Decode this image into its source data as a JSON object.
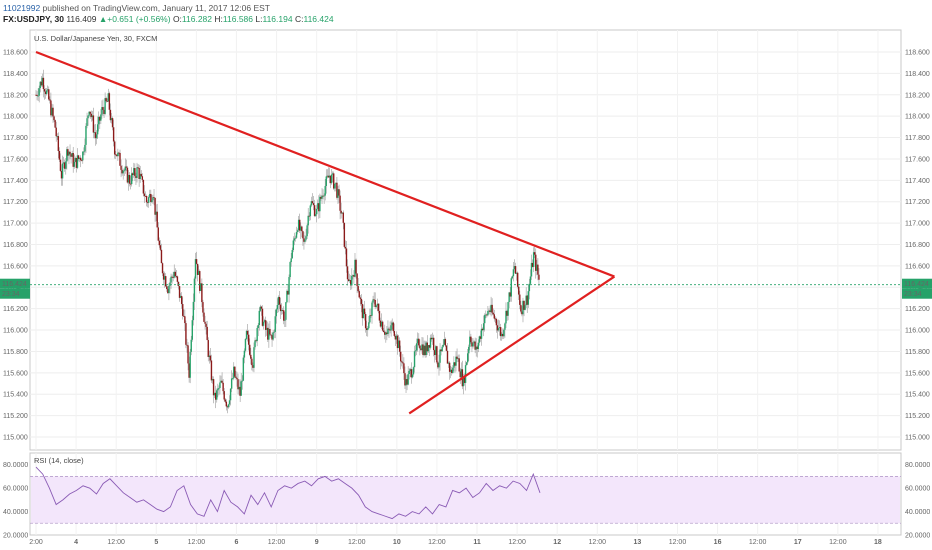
{
  "header": {
    "author": "11021992",
    "published": " published on TradingView.com, January 11, 2017 12:06 EST",
    "symbol": "FX:USDJPY, 30",
    "last": "116.409",
    "change": "+0.651 (+0.56%)",
    "open_label": "O:",
    "open": "116.282",
    "high_label": "H:",
    "high": "116.586",
    "low_label": "L:",
    "low": "116.194",
    "close_label": "C:",
    "close": "116.424",
    "up_arrow": "▲"
  },
  "chart_data": {
    "type": "candlestick",
    "title": "U.S. Dollar/Japanese Yen, 30, FXCM",
    "ylim": [
      114.95,
      118.65
    ],
    "y_ticks": [
      "118.600",
      "118.400",
      "118.200",
      "118.000",
      "117.800",
      "117.600",
      "117.400",
      "117.200",
      "117.000",
      "116.800",
      "116.600",
      "116.400",
      "116.200",
      "116.000",
      "115.800",
      "115.600",
      "115.400",
      "115.200",
      "115.000"
    ],
    "x_ticks": [
      "2:00",
      "4",
      "12:00",
      "5",
      "12:00",
      "6",
      "12:00",
      "9",
      "12:00",
      "10",
      "12:00",
      "11",
      "12:00",
      "12",
      "12:00",
      "13",
      "12:00",
      "16",
      "12:00",
      "17",
      "12:00",
      "18"
    ],
    "last_price": "116.424",
    "countdown": "23:34",
    "price_path": [
      [
        0,
        118.2
      ],
      [
        6,
        118.35
      ],
      [
        12,
        118.15
      ],
      [
        18,
        117.9
      ],
      [
        24,
        117.45
      ],
      [
        30,
        117.7
      ],
      [
        36,
        117.55
      ],
      [
        44,
        117.65
      ],
      [
        50,
        118.1
      ],
      [
        56,
        117.8
      ],
      [
        62,
        118.05
      ],
      [
        68,
        118.15
      ],
      [
        74,
        117.7
      ],
      [
        80,
        117.55
      ],
      [
        88,
        117.4
      ],
      [
        96,
        117.5
      ],
      [
        104,
        117.2
      ],
      [
        110,
        117.3
      ],
      [
        118,
        116.6
      ],
      [
        124,
        116.4
      ],
      [
        130,
        116.55
      ],
      [
        138,
        116.2
      ],
      [
        144,
        115.6
      ],
      [
        150,
        116.7
      ],
      [
        156,
        116.3
      ],
      [
        162,
        115.8
      ],
      [
        168,
        115.35
      ],
      [
        174,
        115.5
      ],
      [
        180,
        115.3
      ],
      [
        186,
        115.6
      ],
      [
        192,
        115.4
      ],
      [
        198,
        115.95
      ],
      [
        204,
        115.7
      ],
      [
        210,
        116.2
      ],
      [
        216,
        116.0
      ],
      [
        222,
        115.9
      ],
      [
        228,
        116.3
      ],
      [
        234,
        116.1
      ],
      [
        240,
        116.7
      ],
      [
        246,
        117.0
      ],
      [
        252,
        116.8
      ],
      [
        258,
        117.2
      ],
      [
        264,
        117.1
      ],
      [
        270,
        117.3
      ],
      [
        276,
        117.45
      ],
      [
        282,
        117.35
      ],
      [
        288,
        117.05
      ],
      [
        294,
        116.4
      ],
      [
        300,
        116.6
      ],
      [
        306,
        116.2
      ],
      [
        312,
        116.0
      ],
      [
        318,
        116.3
      ],
      [
        324,
        116.1
      ],
      [
        330,
        115.95
      ],
      [
        336,
        116.05
      ],
      [
        342,
        115.8
      ],
      [
        348,
        115.5
      ],
      [
        354,
        115.65
      ],
      [
        360,
        115.9
      ],
      [
        366,
        115.8
      ],
      [
        372,
        115.95
      ],
      [
        378,
        115.7
      ],
      [
        384,
        115.85
      ],
      [
        390,
        115.6
      ],
      [
        396,
        115.75
      ],
      [
        402,
        115.5
      ],
      [
        408,
        115.95
      ],
      [
        414,
        115.8
      ],
      [
        420,
        116.05
      ],
      [
        426,
        116.2
      ],
      [
        432,
        116.1
      ],
      [
        438,
        115.95
      ],
      [
        444,
        116.25
      ],
      [
        450,
        116.6
      ],
      [
        456,
        116.2
      ],
      [
        462,
        116.3
      ],
      [
        468,
        116.7
      ],
      [
        474,
        116.42
      ]
    ],
    "annotations": {
      "upper_trendline": [
        [
          0,
          118.6
        ],
        [
          472,
          116.5
        ],
        [
          544,
          116.5
        ]
      ],
      "lower_trendline": [
        [
          351,
          115.22
        ],
        [
          464,
          116.0
        ],
        [
          544,
          116.5
        ]
      ]
    },
    "rsi": {
      "title": "RSI (14, close)",
      "ylim": [
        20,
        90
      ],
      "y_ticks": [
        "80.0000",
        "60.0000",
        "40.0000",
        "20.0000"
      ],
      "bands": [
        30,
        70
      ],
      "values": [
        78,
        72,
        60,
        46,
        50,
        55,
        58,
        62,
        60,
        55,
        64,
        68,
        62,
        56,
        52,
        48,
        50,
        46,
        42,
        40,
        44,
        58,
        62,
        46,
        38,
        36,
        50,
        40,
        58,
        48,
        44,
        38,
        54,
        46,
        56,
        44,
        58,
        62,
        60,
        64,
        66,
        62,
        68,
        70,
        66,
        68,
        64,
        60,
        54,
        44,
        40,
        38,
        36,
        34,
        38,
        36,
        40,
        38,
        44,
        38,
        46,
        44,
        58,
        56,
        60,
        52,
        56,
        64,
        58,
        62,
        60,
        66,
        64,
        58,
        72,
        56
      ]
    }
  },
  "colors": {
    "up": "#26a269",
    "down": "#8b1a1a",
    "trendline": "#e02020",
    "last_price": "#26a269",
    "rsi_line": "#8a5bb5",
    "rsi_band": "#f3e6fb"
  }
}
